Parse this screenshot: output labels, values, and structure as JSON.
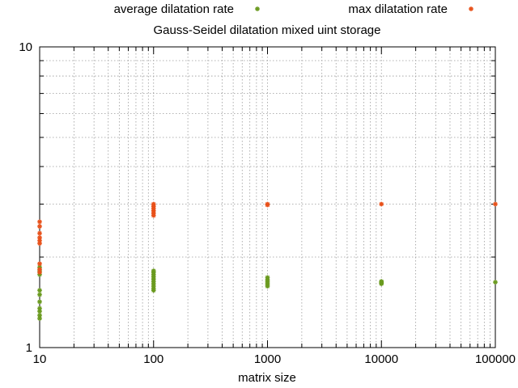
{
  "chart_data": {
    "type": "scatter",
    "title": "Gauss-Seidel dilatation mixed uint storage",
    "xlabel": "matrix size",
    "ylabel": "",
    "xscale": "log",
    "yscale": "log",
    "xlim": [
      10,
      100000
    ],
    "ylim": [
      1,
      10
    ],
    "x_ticks": [
      10,
      100,
      1000,
      10000,
      100000
    ],
    "x_tick_labels": [
      "10",
      "100",
      "1000",
      "10000",
      "100000"
    ],
    "y_ticks": [
      1,
      10
    ],
    "y_tick_labels": [
      "1",
      "10"
    ],
    "grid": true,
    "legend_position": "top",
    "series": [
      {
        "name": "average dilatation rate",
        "color": "#6a9a1f",
        "marker": "star",
        "x": [
          10,
          10,
          10,
          10,
          10,
          10,
          10,
          10,
          10,
          10,
          100,
          100,
          100,
          100,
          100,
          100,
          100,
          100,
          100,
          100,
          1000,
          1000,
          1000,
          1000,
          1000,
          1000,
          10000,
          10000,
          10000,
          10000,
          100000
        ],
        "y": [
          1.25,
          1.28,
          1.32,
          1.35,
          1.42,
          1.5,
          1.55,
          1.75,
          1.8,
          1.85,
          1.55,
          1.57,
          1.6,
          1.63,
          1.66,
          1.69,
          1.72,
          1.75,
          1.78,
          1.8,
          1.6,
          1.62,
          1.64,
          1.66,
          1.68,
          1.71,
          1.63,
          1.64,
          1.65,
          1.66,
          1.65
        ]
      },
      {
        "name": "max dilatation rate",
        "color": "#e8511a",
        "marker": "star",
        "x": [
          10,
          10,
          10,
          10,
          10,
          10,
          10,
          10,
          10,
          100,
          100,
          100,
          100,
          100,
          100,
          1000,
          1000,
          10000,
          100000
        ],
        "y": [
          1.78,
          1.82,
          1.9,
          2.22,
          2.27,
          2.32,
          2.4,
          2.53,
          2.62,
          2.75,
          2.8,
          2.85,
          2.9,
          2.95,
          3.0,
          2.98,
          3.0,
          3.0,
          3.0
        ]
      }
    ]
  }
}
